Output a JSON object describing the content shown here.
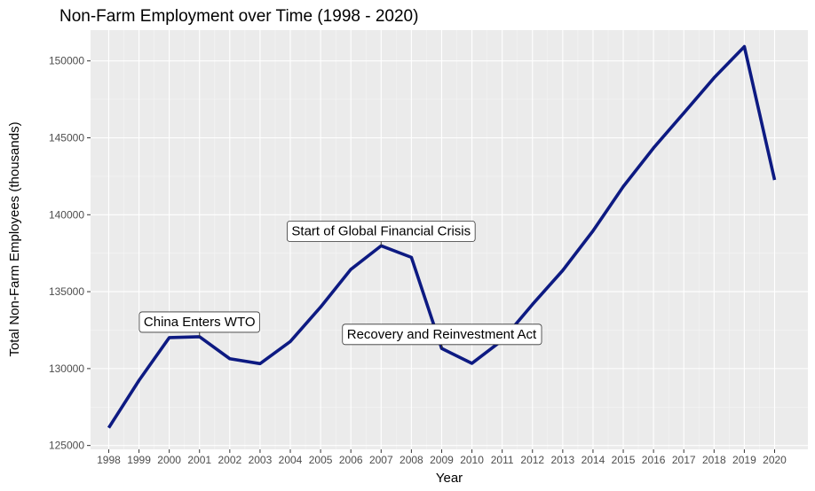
{
  "chart_data": {
    "type": "line",
    "title": "Non-Farm Employment over Time (1998 - 2020)",
    "xlabel": "Year",
    "ylabel": "Total Non-Farm Employees (thousands)",
    "x": [
      1998,
      1999,
      2000,
      2001,
      2002,
      2003,
      2004,
      2005,
      2006,
      2007,
      2008,
      2009,
      2010,
      2011,
      2012,
      2013,
      2014,
      2015,
      2016,
      2017,
      2018,
      2019,
      2020
    ],
    "x_tick_labels": [
      "1998",
      "1999",
      "2000",
      "2001",
      "2002",
      "2003",
      "2004",
      "2005",
      "2006",
      "2007",
      "2008",
      "2009",
      "2010",
      "2011",
      "2012",
      "2013",
      "2014",
      "2015",
      "2016",
      "2017",
      "2018",
      "2019",
      "2020"
    ],
    "series": [
      {
        "values": [
          126150,
          129230,
          132010,
          132070,
          130640,
          130320,
          131760,
          134000,
          136450,
          137980,
          137230,
          131310,
          130340,
          131840,
          134170,
          136380,
          138950,
          141830,
          144340,
          146610,
          148900,
          150930,
          142260
        ],
        "color": "#0d1a82"
      }
    ],
    "y_ticks": [
      125000,
      130000,
      135000,
      140000,
      145000,
      150000
    ],
    "y_tick_labels": [
      "125000",
      "130000",
      "135000",
      "140000",
      "145000",
      "150000"
    ],
    "xlim": [
      1997.4,
      2021.1
    ],
    "ylim": [
      124750,
      152000
    ],
    "grid": true,
    "annotations": [
      {
        "text": "China Enters WTO",
        "x": 2001,
        "y": 133050,
        "anchor_x": 2001,
        "anchor_y": 132070
      },
      {
        "text": "Start of Global Financial Crisis",
        "x": 2007,
        "y": 138950,
        "anchor_x": 2007,
        "anchor_y": 137980
      },
      {
        "text": "Recovery and Reinvestment Act",
        "x": 2009,
        "y": 132250,
        "anchor_x": 2009,
        "anchor_y": 131310
      }
    ],
    "colors": {
      "panel": "#ebebeb",
      "grid_major": "#ffffff",
      "grid_minor": "#f5f5f5",
      "line": "#0d1a82"
    }
  }
}
